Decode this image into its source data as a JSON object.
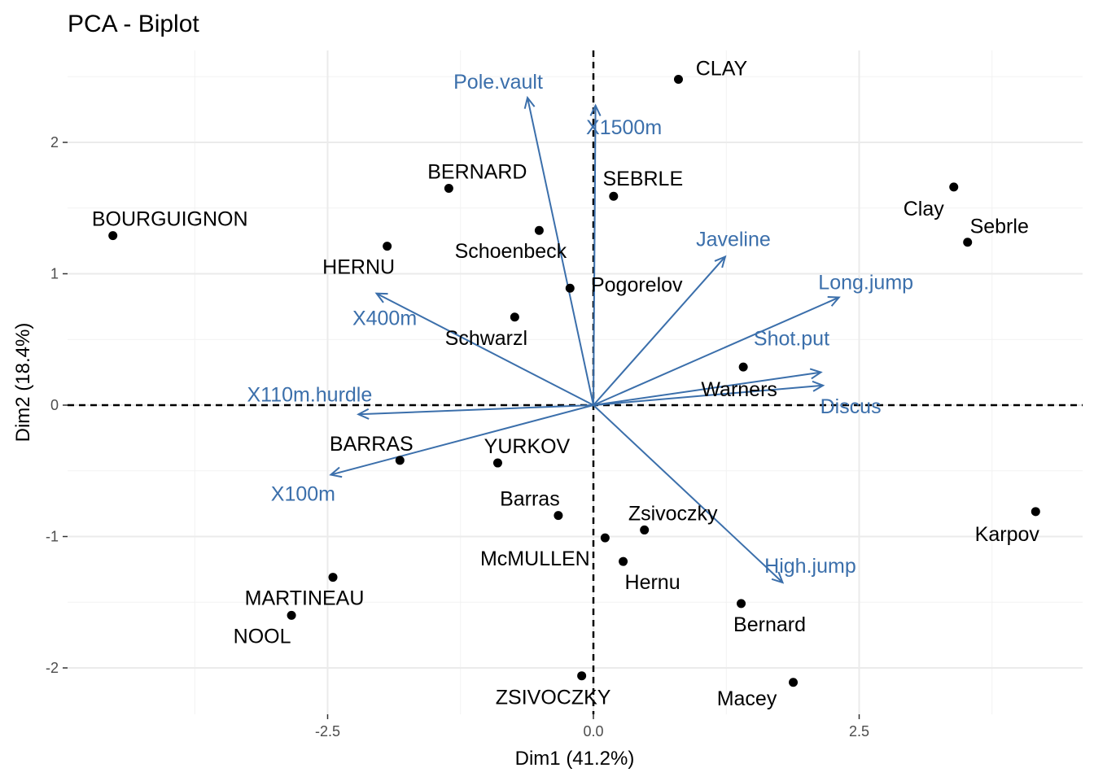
{
  "chart_data": {
    "type": "scatter",
    "title": "PCA - Biplot",
    "xlabel": "Dim1 (41.2%)",
    "ylabel": "Dim2 (18.4%)",
    "xlim": [
      -4.76,
      4.6
    ],
    "ylim": [
      -2.35,
      2.7
    ],
    "xticks": [
      {
        "v": -2.5,
        "label": "-2.5"
      },
      {
        "v": 0,
        "label": "0.0"
      },
      {
        "v": 2.5,
        "label": "2.5"
      }
    ],
    "yticks": [
      {
        "v": -2,
        "label": "-2"
      },
      {
        "v": -1,
        "label": "-1"
      },
      {
        "v": 0,
        "label": "0"
      },
      {
        "v": 1,
        "label": "1"
      },
      {
        "v": 2,
        "label": "2"
      }
    ],
    "grid": true,
    "colors": {
      "points": "#000000",
      "arrows": "#3b6fab"
    },
    "individuals": [
      {
        "name": "CLAY",
        "x": 0.8,
        "y": 2.48
      },
      {
        "name": "BERNARD",
        "x": -1.36,
        "y": 1.65
      },
      {
        "name": "SEBRLE",
        "x": 0.19,
        "y": 1.59
      },
      {
        "name": "BOURGUIGNON",
        "x": -4.52,
        "y": 1.29
      },
      {
        "name": "Clay",
        "x": 3.39,
        "y": 1.66
      },
      {
        "name": "Sebrle",
        "x": 3.52,
        "y": 1.24
      },
      {
        "name": "HERNU",
        "x": -1.94,
        "y": 1.21
      },
      {
        "name": "Schoenbeck",
        "x": -0.51,
        "y": 1.33
      },
      {
        "name": "Pogorelov",
        "x": -0.22,
        "y": 0.89
      },
      {
        "name": "Schwarzl",
        "x": -0.74,
        "y": 0.67
      },
      {
        "name": "Warners",
        "x": 1.41,
        "y": 0.29
      },
      {
        "name": "YURKOV",
        "x": -0.9,
        "y": -0.44
      },
      {
        "name": "BARRAS",
        "x": -1.82,
        "y": -0.42
      },
      {
        "name": "Barras",
        "x": -0.33,
        "y": -0.84
      },
      {
        "name": "Zsivoczky",
        "x": 0.48,
        "y": -0.95
      },
      {
        "name": "McMULLEN",
        "x": 0.11,
        "y": -1.01
      },
      {
        "name": "Hernu",
        "x": 0.28,
        "y": -1.19
      },
      {
        "name": "Karpov",
        "x": 4.16,
        "y": -0.81
      },
      {
        "name": "MARTINEAU",
        "x": -2.45,
        "y": -1.31
      },
      {
        "name": "NOOL",
        "x": -2.84,
        "y": -1.6
      },
      {
        "name": "Bernard",
        "x": 1.39,
        "y": -1.51
      },
      {
        "name": "ZSIVOCZKY",
        "x": -0.11,
        "y": -2.06
      },
      {
        "name": "Macey",
        "x": 1.88,
        "y": -2.11
      }
    ],
    "variables": [
      {
        "name": "Pole.vault",
        "x": -0.62,
        "y": 2.34
      },
      {
        "name": "X1500m",
        "x": 0.02,
        "y": 2.28
      },
      {
        "name": "Javeline",
        "x": 1.24,
        "y": 1.13
      },
      {
        "name": "Long.jump",
        "x": 2.31,
        "y": 0.82
      },
      {
        "name": "Shot.put",
        "x": 2.14,
        "y": 0.25
      },
      {
        "name": "Discus",
        "x": 2.16,
        "y": 0.15
      },
      {
        "name": "High.jump",
        "x": 1.78,
        "y": -1.35
      },
      {
        "name": "X100m",
        "x": -2.47,
        "y": -0.53
      },
      {
        "name": "X110m.hurdle",
        "x": -2.21,
        "y": -0.07
      },
      {
        "name": "X400m",
        "x": -2.04,
        "y": 0.85
      }
    ]
  }
}
